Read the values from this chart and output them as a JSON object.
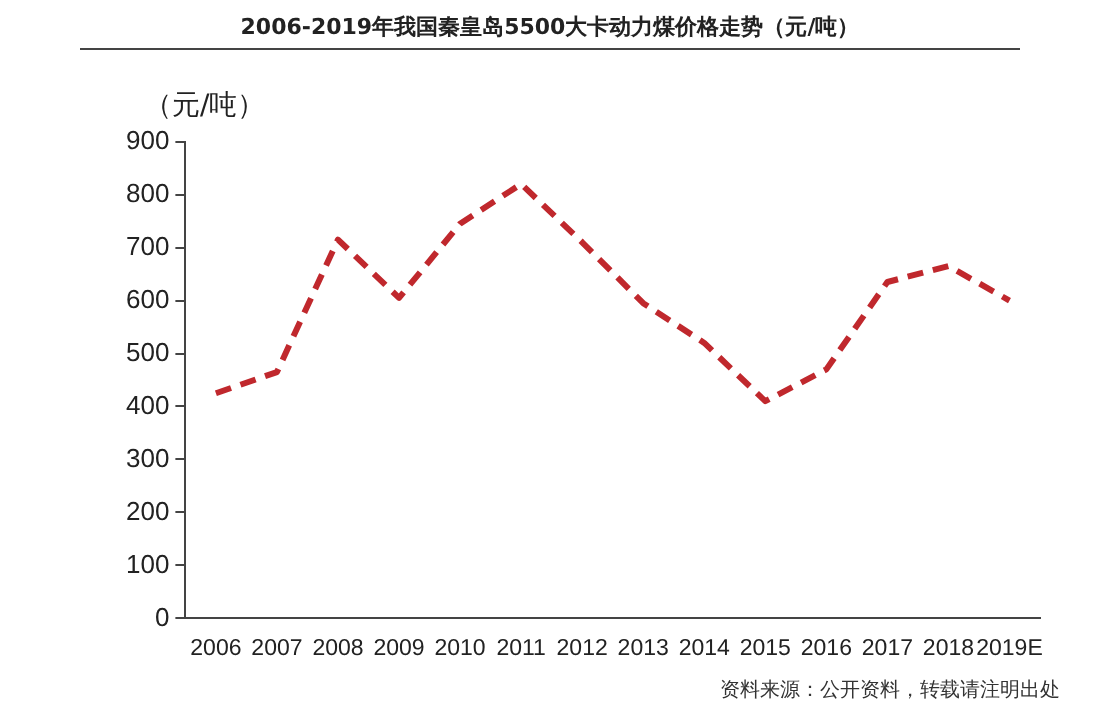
{
  "chart_data": {
    "type": "line",
    "title": "2006-2019年我国秦皇岛5500大卡动力煤价格走势（元/吨）",
    "ylabel": "（元/吨）",
    "categories": [
      "2006",
      "2007",
      "2008",
      "2009",
      "2010",
      "2011",
      "2012",
      "2013",
      "2014",
      "2015",
      "2016",
      "2017",
      "2018",
      "2019E"
    ],
    "series": [
      {
        "color": "#c0282d",
        "values": [
          425,
          465,
          715,
          605,
          745,
          820,
          710,
          595,
          520,
          410,
          470,
          635,
          665,
          600
        ]
      }
    ],
    "ylim": [
      0,
      900
    ],
    "yticks": [
      0,
      100,
      200,
      300,
      400,
      500,
      600,
      700,
      800,
      900
    ],
    "grid": false,
    "legend": false,
    "marker": "none",
    "line_style": "dashed",
    "annotations": [
      "资料来源：公开资料，转载请注明出处"
    ]
  }
}
